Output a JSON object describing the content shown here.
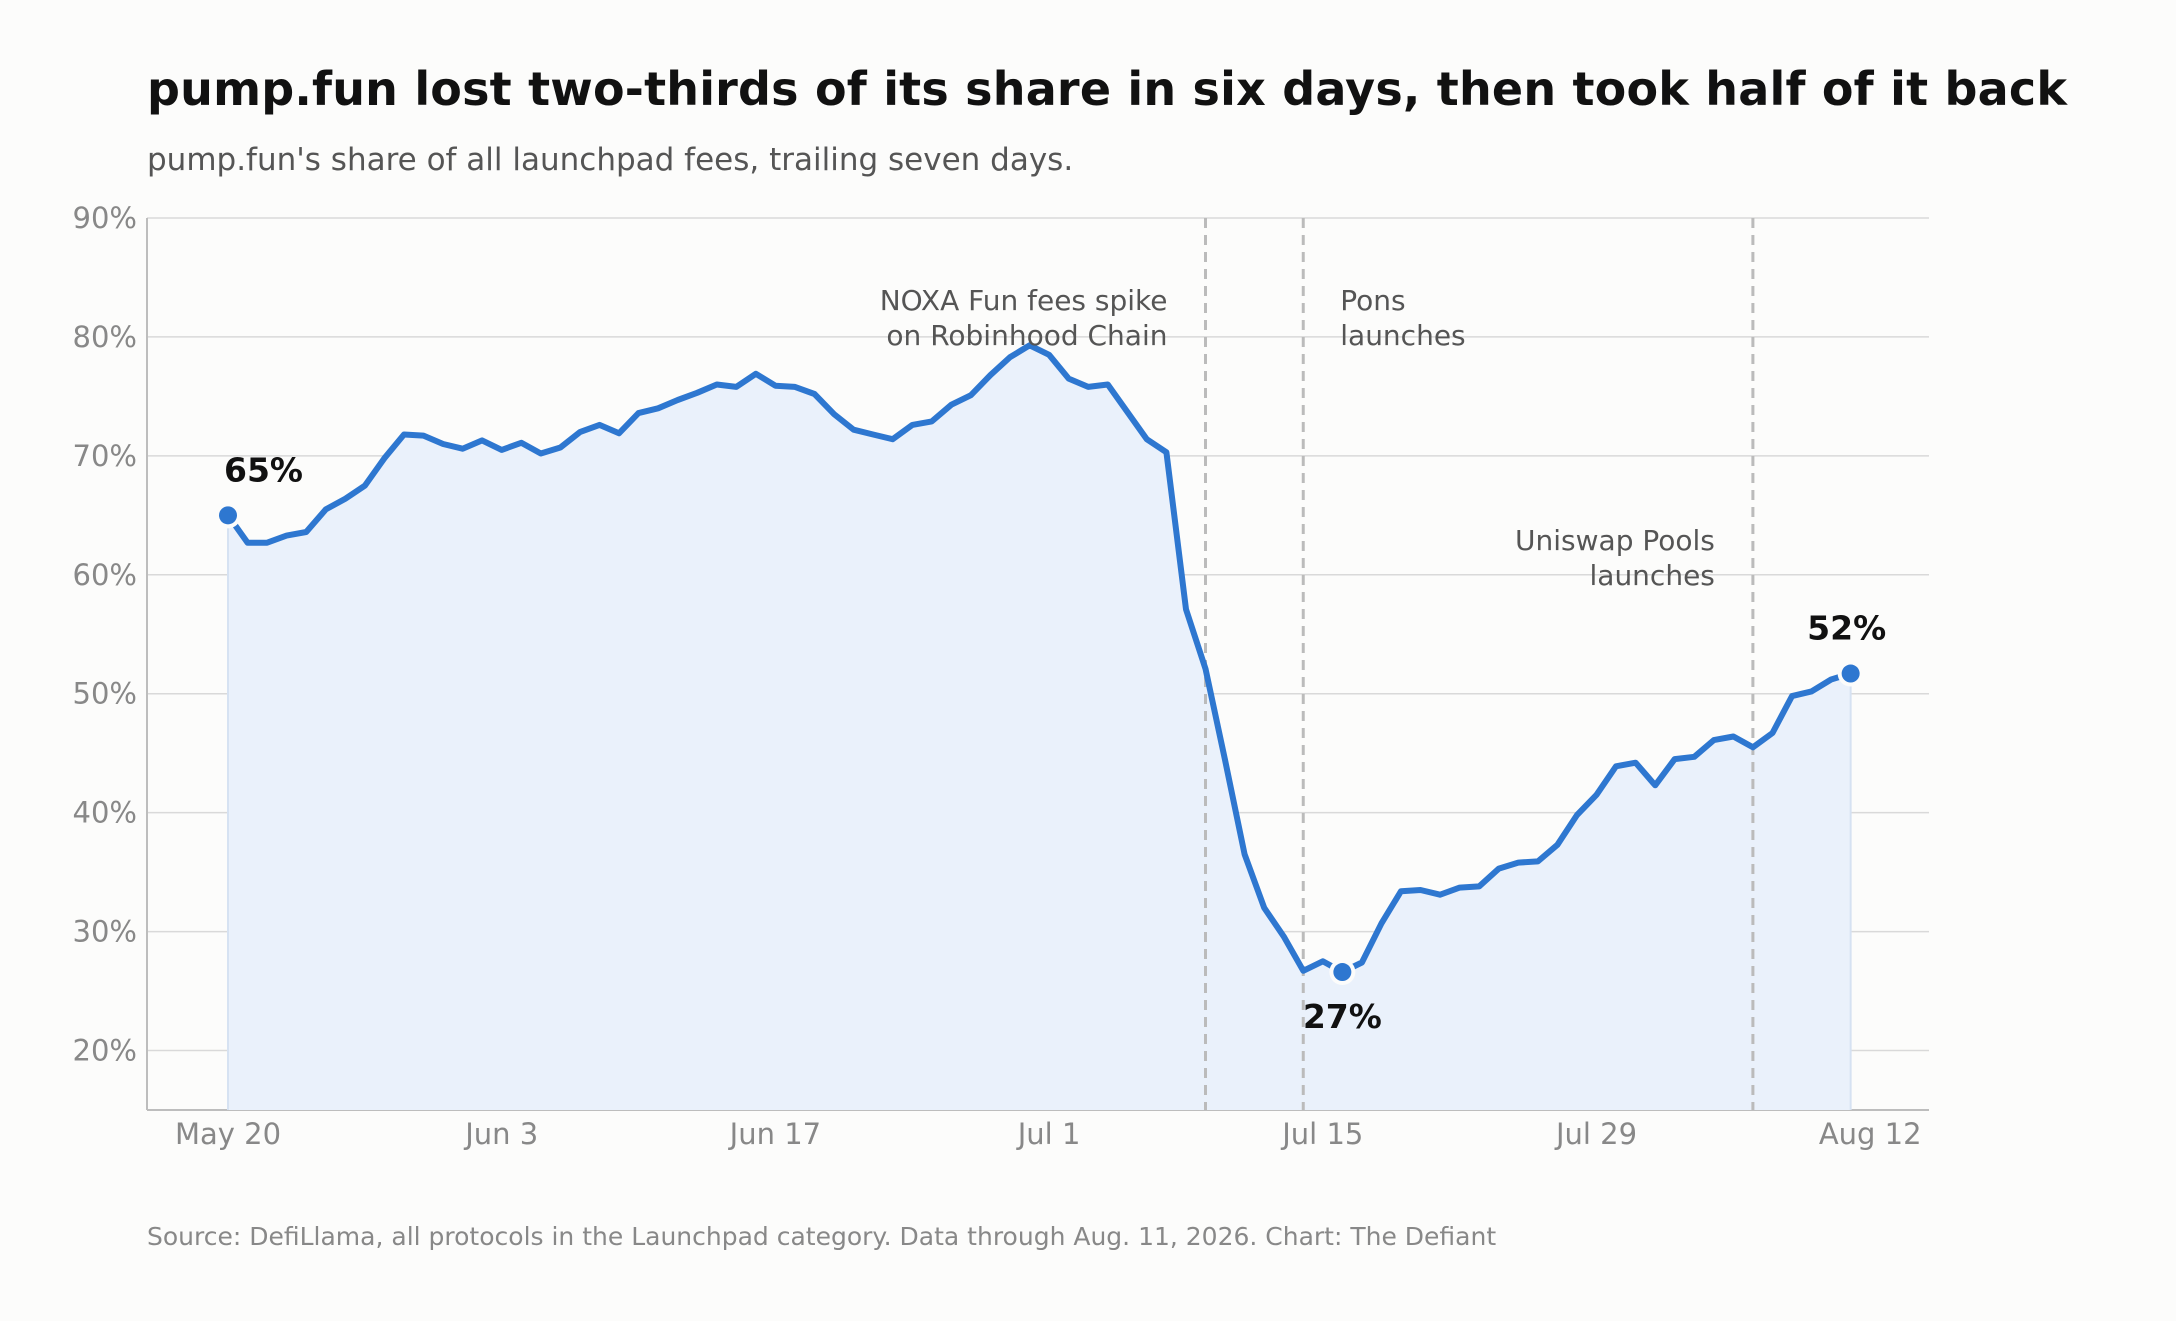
{
  "header": {
    "title": "pump.fun lost two-thirds of its share in six days, then took half of it back",
    "subtitle": "pump.fun's share of all launchpad fees, trailing seven days."
  },
  "footer": {
    "source": "Source: DefiLlama, all protocols in the Launchpad category. Data through Aug. 11, 2026. Chart: The Defiant"
  },
  "colors": {
    "line": "#2e77d0",
    "fill": "#eaf1fb",
    "grid": "#d9d9d9",
    "vline": "#bbbbbb"
  },
  "chart_data": {
    "type": "area",
    "title": "pump.fun lost two-thirds of its share in six days, then took half of it back",
    "subtitle": "pump.fun's share of all launchpad fees, trailing seven days.",
    "xlabel": "",
    "ylabel": "",
    "x_start": "2026-05-20",
    "x_end": "2026-08-11",
    "ylim": [
      15,
      90
    ],
    "grid": true,
    "yticks": [
      {
        "value": 20,
        "label": "20%"
      },
      {
        "value": 30,
        "label": "30%"
      },
      {
        "value": 40,
        "label": "40%"
      },
      {
        "value": 50,
        "label": "50%"
      },
      {
        "value": 60,
        "label": "60%"
      },
      {
        "value": 70,
        "label": "70%"
      },
      {
        "value": 80,
        "label": "80%"
      },
      {
        "value": 90,
        "label": "90%"
      }
    ],
    "xticks": [
      {
        "date": "2026-05-20",
        "label": "May 20"
      },
      {
        "date": "2026-06-03",
        "label": "Jun 3"
      },
      {
        "date": "2026-06-17",
        "label": "Jun 17"
      },
      {
        "date": "2026-07-01",
        "label": "Jul 1"
      },
      {
        "date": "2026-07-15",
        "label": "Jul 15"
      },
      {
        "date": "2026-07-29",
        "label": "Jul 29"
      },
      {
        "date": "2026-08-12",
        "label": "Aug 12"
      }
    ],
    "series": [
      {
        "values": [
          65.0,
          62.7,
          62.7,
          63.3,
          63.6,
          65.5,
          66.4,
          67.5,
          69.8,
          71.8,
          71.7,
          71.0,
          70.6,
          71.3,
          70.5,
          71.1,
          70.2,
          70.7,
          72.0,
          72.6,
          71.9,
          73.6,
          74.0,
          74.7,
          75.3,
          76.0,
          75.8,
          76.9,
          75.9,
          75.8,
          75.2,
          73.5,
          72.2,
          71.8,
          71.4,
          72.6,
          72.9,
          74.3,
          75.1,
          76.8,
          78.3,
          79.3,
          78.5,
          76.5,
          75.8,
          76.0,
          73.7,
          71.4,
          70.3,
          57.1,
          52.1,
          44.4,
          36.5,
          32.0,
          29.6,
          26.7,
          27.5,
          26.6,
          27.4,
          30.7,
          33.4,
          33.5,
          33.1,
          33.7,
          33.8,
          35.3,
          35.8,
          35.9,
          37.3,
          39.8,
          41.5,
          43.9,
          44.2,
          42.3,
          44.5,
          44.7,
          46.1,
          46.4,
          45.5,
          46.7,
          49.8,
          50.2,
          51.2,
          51.7
        ]
      }
    ],
    "highlights": [
      {
        "date": "2026-05-20",
        "value": 65.0,
        "label": "65%",
        "pos": "above"
      },
      {
        "date": "2026-07-16",
        "value": 26.6,
        "label": "27%",
        "pos": "below"
      },
      {
        "date": "2026-08-11",
        "value": 51.7,
        "label": "52%",
        "pos": "above"
      }
    ],
    "events": [
      {
        "date": "2026-07-09",
        "lines": [
          "NOXA Fun fees spike",
          "on Robinhood Chain"
        ],
        "align": "left-of"
      },
      {
        "date": "2026-07-14",
        "lines": [
          "Pons",
          "launches"
        ],
        "align": "right-of"
      },
      {
        "date": "2026-08-06",
        "lines": [
          "Uniswap Pools",
          "launches"
        ],
        "align": "left-of"
      }
    ]
  }
}
